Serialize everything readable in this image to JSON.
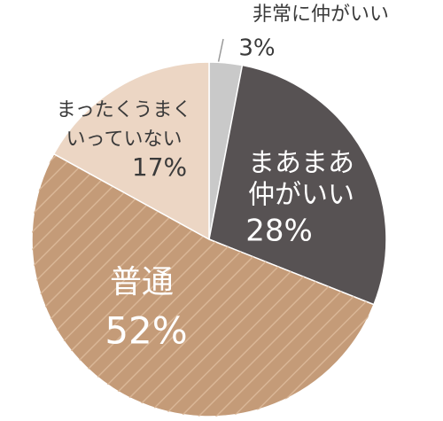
{
  "chart_data": {
    "type": "pie",
    "categories": [
      [
        "非常に仲がいい"
      ],
      [
        "まあまあ",
        "仲がいい"
      ],
      [
        "普通"
      ],
      [
        "まったくうまく",
        "いっていない"
      ]
    ],
    "values": [
      3,
      28,
      52,
      17
    ],
    "value_labels": [
      "3%",
      "28%",
      "52%",
      "17%"
    ],
    "colors": [
      "#c9c9c9",
      "#575253",
      "#c49b78",
      "#ecd6c4"
    ],
    "label_colors": [
      "#3a3a3a",
      "#ffffff",
      "#ffffff",
      "#3a3a3a"
    ],
    "hatch": [
      false,
      false,
      true,
      false
    ]
  }
}
